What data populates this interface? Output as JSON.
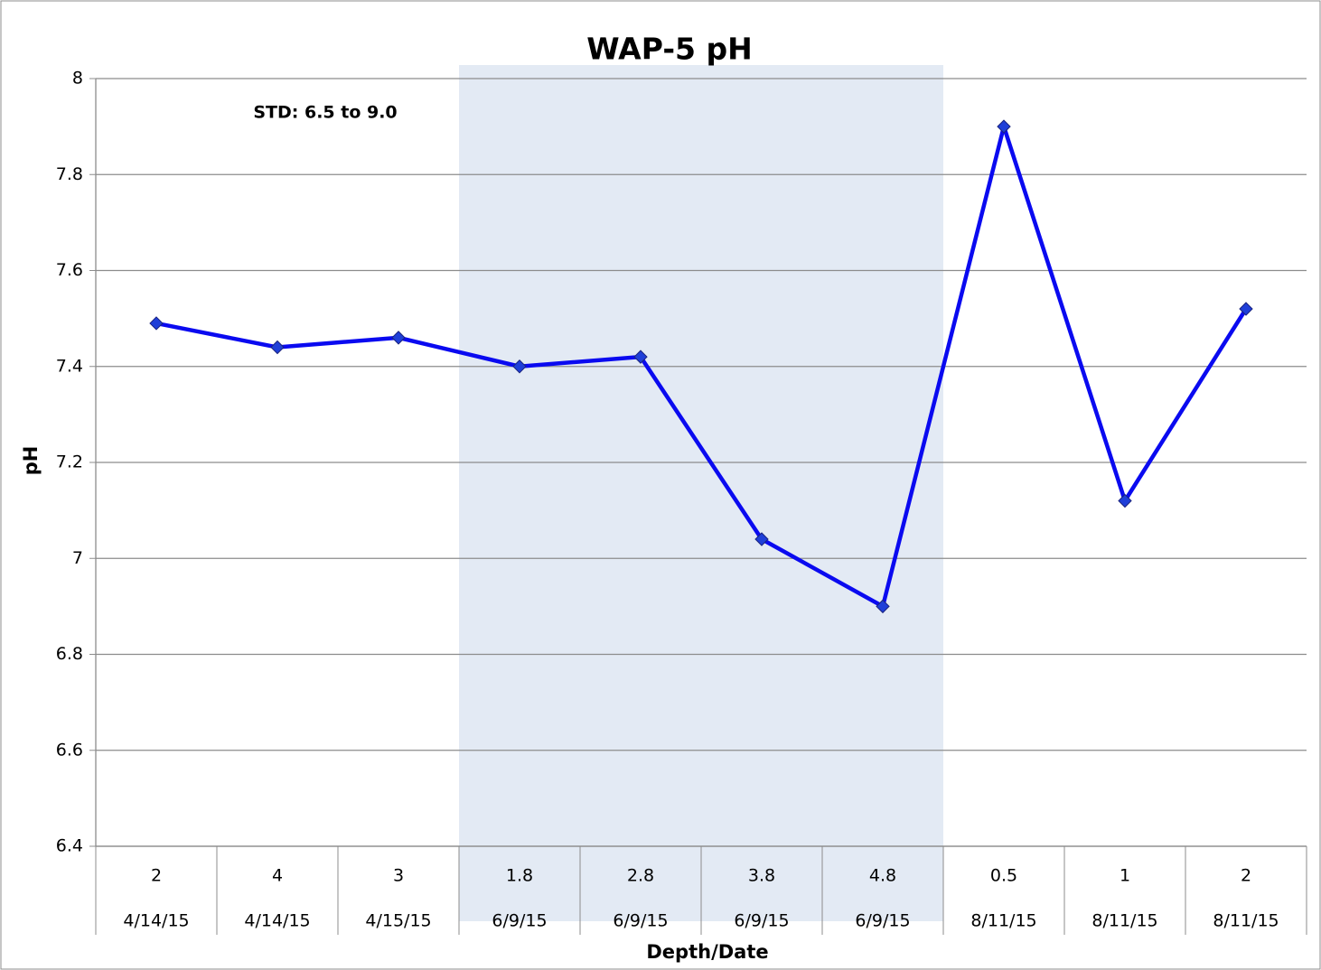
{
  "chart_data": {
    "type": "line",
    "title": "WAP-5 pH",
    "annotation": "STD: 6.5 to 9.0",
    "x_label": "Depth/Date",
    "y_label": "pH",
    "categories": [
      "2",
      "4",
      "3",
      "1.8",
      "2.8",
      "3.8",
      "4.8",
      "0.5",
      "1",
      "2"
    ],
    "dates": [
      "4/14/15",
      "4/14/15",
      "4/15/15",
      "6/9/15",
      "6/9/15",
      "6/9/15",
      "6/9/15",
      "8/11/15",
      "8/11/15",
      "8/11/15"
    ],
    "series": [
      {
        "name": "pH",
        "color": "#0a0af0",
        "marker_color": "#1f3fd8",
        "values": [
          7.49,
          7.44,
          7.46,
          7.4,
          7.42,
          7.04,
          6.9,
          7.9,
          7.12,
          7.52
        ]
      }
    ],
    "ylim": [
      6.4,
      8
    ],
    "yticks": [
      6.4,
      6.6,
      6.8,
      7,
      7.2,
      7.4,
      7.6,
      7.8,
      8
    ],
    "grid": true,
    "shaded": {
      "from": 3,
      "to": 6,
      "color": "#e3eaf4"
    }
  }
}
